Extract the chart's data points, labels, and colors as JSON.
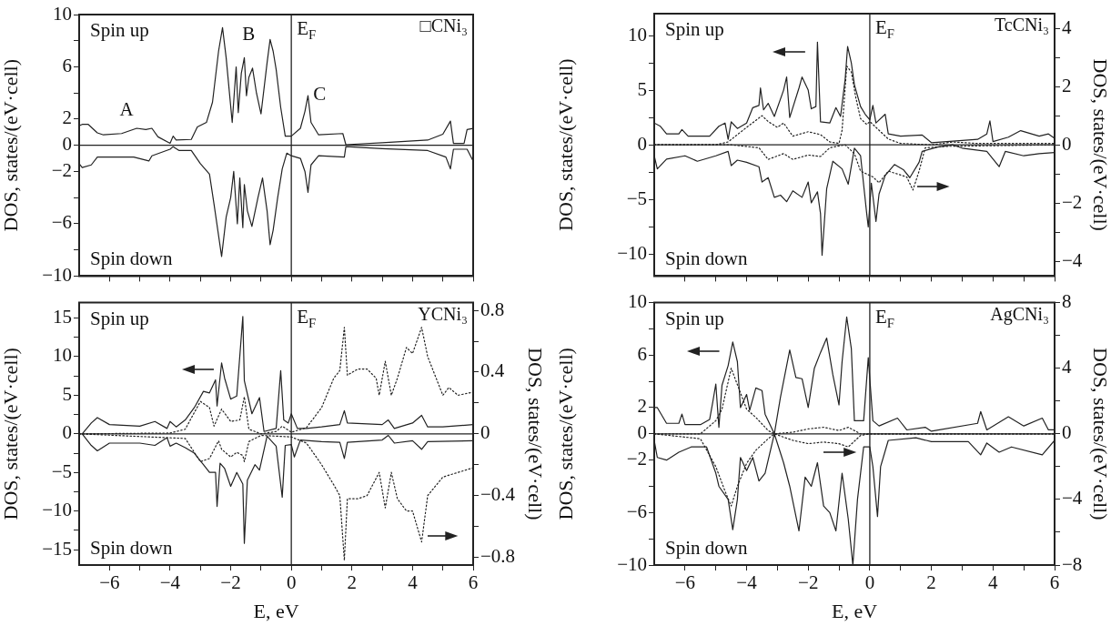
{
  "chart_data": [
    {
      "type": "line",
      "title": "□CNi₃",
      "ylabel": "DOS, states/(eV·cell)",
      "xlim": [
        -7,
        6
      ],
      "xticks": [
        -6,
        {
          "value": -5,
          "label": null
        },
        -4,
        {
          "value": -3,
          "label": null
        },
        -2,
        {
          "value": -1,
          "label": null
        },
        0,
        {
          "value": 1,
          "label": null
        },
        2,
        {
          "value": 3,
          "label": null
        },
        4,
        {
          "value": 5,
          "label": null
        },
        6
      ],
      "ylim": [
        -10,
        10
      ],
      "yticks": [
        -10,
        {
          "value": -8,
          "label": null
        },
        -6,
        {
          "value": -4,
          "label": null
        },
        -2,
        0,
        2,
        {
          "value": 4,
          "label": null
        },
        6,
        {
          "value": 8,
          "label": null
        },
        10
      ],
      "tick_labels": "y",
      "ref_lines": [
        {
          "axis": "x",
          "value": 0,
          "label": "E$_{F}$"
        },
        {
          "axis": "y",
          "value": 0
        }
      ],
      "annotations": [
        "Spin up",
        "Spin down",
        "A",
        "B",
        "C"
      ],
      "series": [
        {
          "color": "#222222",
          "x": [
            -7,
            -6.9,
            -6.7,
            -6.4,
            -6.2,
            -5.6,
            -5.1,
            -4.8,
            -4.6,
            -4.4,
            -4.0,
            -3.9,
            -3.8,
            -3.3,
            -3.1,
            -2.8,
            -2.6,
            -2.4,
            -2.27,
            -2.15,
            -1.95,
            -1.82,
            -1.75,
            -1.65,
            -1.55,
            -1.48,
            -1.4,
            -1.28,
            -1.15,
            -1.0,
            -0.8,
            -0.7,
            -0.6,
            -0.5,
            -0.35,
            -0.2,
            0,
            0.3,
            0.45,
            0.55,
            0.65,
            0.9,
            1.7,
            1.8,
            3.0,
            4.5,
            5.0,
            5.25,
            5.35,
            5.7,
            5.8,
            6.0
          ],
          "values": [
            1.5,
            1.6,
            1.6,
            0.95,
            0.8,
            0.9,
            1.3,
            1.2,
            1.3,
            0.65,
            0.15,
            0.7,
            0.4,
            0.45,
            1.4,
            1.75,
            3.3,
            7.2,
            9.0,
            6.7,
            1.75,
            6.0,
            2.5,
            5.5,
            6.7,
            3.8,
            5.2,
            5.9,
            4.0,
            2.4,
            6.3,
            8.1,
            7.2,
            5.8,
            2.9,
            0.7,
            0.7,
            1.3,
            2.6,
            3.8,
            1.75,
            0.8,
            0.9,
            0.05,
            0.2,
            0.4,
            0.85,
            1.85,
            0.15,
            0.15,
            1.2,
            1.3
          ]
        },
        {
          "color": "#222222",
          "x": [
            -7,
            -6.9,
            -6.6,
            -6.4,
            -5.2,
            -4.7,
            -4.6,
            -4.0,
            -3.9,
            -3.7,
            -3.3,
            -3.0,
            -2.7,
            -2.55,
            -2.3,
            -2.15,
            -2.0,
            -1.9,
            -1.78,
            -1.7,
            -1.6,
            -1.55,
            -1.45,
            -1.3,
            -1.1,
            -0.95,
            -0.8,
            -0.7,
            -0.6,
            -0.45,
            -0.3,
            -0.15,
            0,
            0.3,
            0.45,
            0.55,
            0.65,
            0.9,
            1.75,
            1.8,
            3.0,
            4.5,
            5.1,
            5.25,
            5.35,
            5.8,
            6.0
          ],
          "values": [
            -1.4,
            -1.7,
            -1.5,
            -0.9,
            -0.9,
            -1.2,
            -0.8,
            -0.3,
            -0.1,
            -0.4,
            -0.4,
            -1.4,
            -2.2,
            -4.5,
            -8.5,
            -5.5,
            -4.0,
            -2.0,
            -6.0,
            -2.5,
            -6.3,
            -3.0,
            -5.0,
            -6.2,
            -4.0,
            -2.5,
            -5.0,
            -7.6,
            -6.5,
            -4.0,
            -1.8,
            -0.6,
            -0.8,
            -1.0,
            -2.0,
            -3.6,
            -1.5,
            -0.8,
            -0.9,
            -0.1,
            -0.25,
            -0.4,
            -0.9,
            -1.8,
            -0.3,
            -0.3,
            -1.2
          ]
        }
      ]
    },
    {
      "type": "line",
      "title": "TcCNi₃",
      "ylabel": "DOS, states/(eV·cell)",
      "y2label": "DOS, states/(eV·cell)",
      "xlim": [
        -7,
        6
      ],
      "xticks": [
        -6,
        {
          "value": -5,
          "label": null
        },
        -4,
        {
          "value": -3,
          "label": null
        },
        -2,
        {
          "value": -1,
          "label": null
        },
        0,
        {
          "value": 1,
          "label": null
        },
        2,
        {
          "value": 3,
          "label": null
        },
        4,
        {
          "value": 5,
          "label": null
        },
        6
      ],
      "ylim": [
        -12,
        12
      ],
      "yticks": [
        -10,
        {
          "value": -7.5,
          "label": null
        },
        -5,
        {
          "value": -2.5,
          "label": null
        },
        0,
        {
          "value": 2.5,
          "label": null
        },
        5,
        {
          "value": 7.5,
          "label": null
        },
        10
      ],
      "y2lim": [
        -4.5,
        4.5
      ],
      "y2ticks": [
        -4,
        {
          "value": -3,
          "label": null
        },
        -2,
        {
          "value": -1,
          "label": null
        },
        0,
        {
          "value": 1,
          "label": null
        },
        2,
        {
          "value": 3,
          "label": null
        },
        4
      ],
      "tick_labels": "y",
      "ref_lines": [
        {
          "axis": "x",
          "value": 0,
          "label": "E$_{F}$"
        },
        {
          "axis": "y",
          "value": 0
        }
      ],
      "annotations": [
        "Spin up",
        "Spin down"
      ],
      "series": [
        {
          "color": "#222222",
          "x": [
            -7,
            -6.8,
            -6.6,
            -6.2,
            -6.1,
            -5.9,
            -5.2,
            -4.9,
            -4.7,
            -4.6,
            -4.5,
            -4.3,
            -4.0,
            -3.8,
            -3.6,
            -3.55,
            -3.45,
            -3.3,
            -3.1,
            -2.8,
            -2.7,
            -2.6,
            -2.3,
            -2.2,
            -2.0,
            -1.9,
            -1.75,
            -1.7,
            -1.6,
            -1.3,
            -1.1,
            -0.95,
            -0.8,
            -0.72,
            -0.6,
            -0.5,
            -0.3,
            -0.15,
            0,
            0.1,
            0.2,
            0.5,
            0.6,
            1.0,
            1.7,
            2.0,
            3.0,
            3.5,
            3.8,
            3.9,
            4.0,
            4.5,
            4.9,
            5.5,
            5.8,
            6.0
          ],
          "values": [
            2.0,
            1.7,
            1.0,
            1.0,
            1.4,
            0.8,
            0.8,
            1.7,
            2.0,
            0.5,
            2.1,
            1.5,
            2.0,
            3.4,
            3.6,
            5.2,
            3.2,
            3.8,
            2.6,
            5.0,
            6.2,
            2.5,
            5.2,
            6.2,
            5.0,
            3.3,
            3.5,
            9.4,
            2.1,
            2.0,
            3.4,
            2.6,
            6.0,
            9.0,
            7.5,
            5.5,
            3.5,
            2.8,
            2.3,
            3.6,
            2.0,
            2.8,
            1.0,
            0.8,
            0.9,
            0.2,
            0.4,
            0.5,
            1.0,
            2.2,
            0.3,
            0.7,
            1.3,
            0.8,
            1.0,
            0.6
          ]
        },
        {
          "color": "#222222",
          "x": [
            -7,
            -6.9,
            -6.6,
            -6.0,
            -5.6,
            -5.0,
            -4.6,
            -4.5,
            -4.3,
            -4.0,
            -3.6,
            -3.5,
            -3.3,
            -3.1,
            -2.9,
            -2.7,
            -2.5,
            -2.2,
            -2.0,
            -1.9,
            -1.7,
            -1.6,
            -1.55,
            -1.4,
            -1.2,
            -0.9,
            -0.7,
            -0.5,
            -0.3,
            -0.1,
            -0.05,
            0.05,
            0.2,
            0.3,
            0.5,
            0.8,
            1.1,
            1.3,
            1.6,
            1.7,
            2.2,
            2.7,
            3.0,
            3.8,
            4.2,
            4.4,
            5.0,
            5.5,
            6.0
          ],
          "values": [
            -1.0,
            -2.2,
            -1.3,
            -1.0,
            -1.5,
            -1.0,
            -0.6,
            -1.9,
            -1.4,
            -1.6,
            -2.0,
            -3.4,
            -3.0,
            -4.8,
            -4.6,
            -5.2,
            -4.2,
            -4.8,
            -3.4,
            -5.3,
            -4.3,
            -6.3,
            -10.1,
            -4.0,
            -1.5,
            -2.2,
            -3.6,
            -0.3,
            -1.0,
            -6.3,
            -7.5,
            -3.5,
            -7.0,
            -4.5,
            -2.8,
            -1.8,
            -2.3,
            -3.0,
            -1.6,
            -0.6,
            -0.2,
            0.0,
            -0.3,
            -0.6,
            -2.0,
            -0.6,
            -1.0,
            -0.8,
            -0.7
          ]
        },
        {
          "color": "#222222",
          "line_style": "dotted",
          "axis": "y2",
          "x": [
            -7,
            -5.0,
            -4.6,
            -4.0,
            -3.5,
            -3.3,
            -3.0,
            -2.8,
            -2.5,
            -2.0,
            -1.6,
            -1.3,
            -1.0,
            -0.9,
            -0.75,
            -0.6,
            -0.45,
            -0.3,
            -0.1,
            0,
            0.2,
            0.6,
            1.0,
            2.0,
            2.7,
            3.5,
            6.0
          ],
          "values": [
            0,
            0,
            0.1,
            0.6,
            1.0,
            0.8,
            0.6,
            0.75,
            0.3,
            0.45,
            0.35,
            0.1,
            0.05,
            0.5,
            2.7,
            2.5,
            1.6,
            0.9,
            0.7,
            0.8,
            0.6,
            0.2,
            0.05,
            0,
            0.1,
            0.05,
            0.05
          ]
        },
        {
          "color": "#222222",
          "line_style": "dotted",
          "axis": "y2",
          "x": [
            -7,
            -4.5,
            -3.6,
            -3.3,
            -2.8,
            -2.5,
            -2.0,
            -1.6,
            -1.3,
            -0.8,
            -0.5,
            -0.3,
            -0.1,
            0.1,
            0.3,
            0.6,
            0.9,
            1.2,
            1.4,
            1.6,
            1.8,
            2.5,
            6.0
          ],
          "values": [
            0,
            0,
            -0.1,
            -0.5,
            -0.3,
            -0.5,
            -0.35,
            -0.4,
            -0.1,
            0,
            -0.3,
            -0.9,
            -1.0,
            -1.1,
            -1.3,
            -0.9,
            -1.0,
            -1.1,
            -1.55,
            -0.9,
            -0.1,
            -0.05,
            0
          ]
        }
      ]
    },
    {
      "type": "line",
      "title": "YCNi₃",
      "xlabel": "E, eV",
      "ylabel": "DOS, states/(eV·cell)",
      "y2label": "DOS, states/(eV·cell)",
      "xlim": [
        -7,
        6
      ],
      "xticks": [
        -6,
        {
          "value": -5,
          "label": null
        },
        -4,
        {
          "value": -3,
          "label": null
        },
        -2,
        {
          "value": -1,
          "label": null
        },
        0,
        {
          "value": 1,
          "label": null
        },
        2,
        {
          "value": 3,
          "label": null
        },
        4,
        {
          "value": 5,
          "label": null
        },
        6
      ],
      "ylim": [
        -17,
        17
      ],
      "yticks": [
        -15,
        {
          "value": -12.5,
          "label": null
        },
        -10,
        {
          "value": -7.5,
          "label": null
        },
        -5,
        {
          "value": -2.5,
          "label": null
        },
        0,
        {
          "value": 2.5,
          "label": null
        },
        5,
        {
          "value": 7.5,
          "label": null
        },
        10,
        {
          "value": 12.5,
          "label": null
        },
        15
      ],
      "y2lim": [
        -0.85,
        0.85
      ],
      "y2ticks": [
        -0.8,
        {
          "value": -0.6,
          "label": null
        },
        -0.4,
        {
          "value": -0.2,
          "label": null
        },
        0,
        {
          "value": 0.2,
          "label": null
        },
        0.4,
        {
          "value": 0.6,
          "label": null
        },
        0.8
      ],
      "ref_lines": [
        {
          "axis": "x",
          "value": 0,
          "label": "E$_{F}$"
        },
        {
          "axis": "y",
          "value": 0
        }
      ],
      "annotations": [
        "Spin up",
        "Spin down"
      ],
      "series": [
        {
          "color": "#222222",
          "x": [
            -6.9,
            -6.6,
            -6.4,
            -6.0,
            -5.0,
            -4.5,
            -4.1,
            -4.0,
            -3.8,
            -3.5,
            -3.2,
            -2.9,
            -2.7,
            -2.5,
            -2.45,
            -2.3,
            -2.2,
            -2.0,
            -1.8,
            -1.6,
            -1.55,
            -1.3,
            -1.05,
            -0.9,
            -0.5,
            -0.35,
            -0.25,
            -0.1,
            0,
            0.2,
            0.5,
            1.0,
            1.6,
            1.75,
            1.85,
            3.0,
            3.2,
            3.4,
            4.0,
            4.3,
            4.5,
            5.0,
            6.0
          ],
          "values": [
            0,
            1.4,
            2.1,
            1.2,
            1.0,
            1.6,
            0.7,
            1.6,
            0.9,
            1.8,
            3.4,
            5.5,
            5.3,
            7.0,
            3.6,
            9.2,
            7.2,
            4.5,
            4.9,
            15.2,
            6.9,
            2.6,
            4.7,
            0.3,
            0.7,
            8.2,
            1.8,
            1.4,
            2.6,
            0.7,
            0.7,
            0.9,
            1.2,
            3.0,
            1.4,
            1.2,
            1.8,
            0.7,
            1.4,
            2.4,
            0.9,
            0.9,
            1.2
          ]
        },
        {
          "color": "#222222",
          "x": [
            -6.9,
            -6.6,
            -6.4,
            -6.0,
            -5.0,
            -4.5,
            -4.1,
            -4.0,
            -3.8,
            -3.5,
            -3.2,
            -2.9,
            -2.7,
            -2.5,
            -2.45,
            -2.35,
            -2.2,
            -2.0,
            -1.8,
            -1.6,
            -1.55,
            -1.45,
            -1.2,
            -1.05,
            -0.8,
            -0.5,
            -0.3,
            -0.2,
            0,
            0.1,
            0.3,
            1.0,
            1.6,
            1.75,
            1.85,
            3.0,
            3.2,
            3.4,
            4.0,
            4.3,
            4.5,
            6.0
          ],
          "values": [
            0,
            -1.5,
            -2.2,
            -1.2,
            -1.2,
            -1.5,
            -0.5,
            -1.6,
            -1.2,
            -1.8,
            -2.5,
            -4.0,
            -5.0,
            -5.0,
            -9.4,
            -3.8,
            -4.5,
            -6.8,
            -5.0,
            -6.5,
            -14.2,
            -6.0,
            -4.0,
            -4.7,
            -0.3,
            -1.6,
            -8.2,
            -1.5,
            -1.4,
            -3.0,
            -0.8,
            -1.0,
            -1.1,
            -3.2,
            -1.1,
            -0.8,
            -0.2,
            -1.2,
            -0.9,
            -2.0,
            -1.0,
            -0.9
          ]
        },
        {
          "color": "#222222",
          "line_style": "dotted",
          "axis": "y2",
          "x": [
            -7,
            -4.0,
            -3.5,
            -3.0,
            -2.7,
            -2.55,
            -2.3,
            -2.0,
            -1.7,
            -1.55,
            -1.4,
            -1.0,
            -0.5,
            -0.3,
            0,
            0.5,
            1.0,
            1.4,
            1.6,
            1.75,
            1.85,
            2.2,
            2.5,
            2.8,
            2.9,
            3.1,
            3.3,
            3.5,
            3.8,
            4.0,
            4.3,
            4.5,
            5.0,
            5.2,
            5.5,
            6.0
          ],
          "values": [
            0,
            0.005,
            0.03,
            0.21,
            0.17,
            0.05,
            0.16,
            0.08,
            0.09,
            0.24,
            0.03,
            0,
            0.015,
            0.05,
            0.01,
            0.04,
            0.17,
            0.36,
            0.41,
            0.69,
            0.38,
            0.42,
            0.42,
            0.36,
            0.25,
            0.47,
            0.25,
            0.36,
            0.56,
            0.52,
            0.69,
            0.5,
            0.25,
            0.3,
            0.25,
            0.27
          ]
        },
        {
          "color": "#222222",
          "line_style": "dotted",
          "axis": "y2",
          "x": [
            -7,
            -3.5,
            -3.0,
            -2.7,
            -2.4,
            -2.3,
            -2.0,
            -1.8,
            -1.6,
            -1.55,
            -1.4,
            -1.0,
            0,
            0.5,
            1.0,
            1.4,
            1.6,
            1.75,
            1.85,
            2.2,
            2.5,
            2.9,
            3.1,
            3.3,
            3.5,
            3.8,
            4.0,
            4.3,
            4.5,
            5.0,
            5.5,
            6.0
          ],
          "values": [
            0,
            -0.03,
            -0.18,
            -0.16,
            -0.045,
            -0.1,
            -0.15,
            -0.12,
            -0.14,
            -0.18,
            -0.05,
            -0.01,
            -0.02,
            -0.06,
            -0.2,
            -0.33,
            -0.4,
            -0.82,
            -0.42,
            -0.42,
            -0.4,
            -0.25,
            -0.48,
            -0.25,
            -0.42,
            -0.5,
            -0.5,
            -0.7,
            -0.4,
            -0.28,
            -0.25,
            -0.22
          ]
        }
      ]
    },
    {
      "type": "line",
      "title": "AgCNi₃",
      "xlabel": "E, eV",
      "ylabel": "DOS, states/(eV·cell)",
      "y2label": "DOS, states/(eV·cell)",
      "xlim": [
        -7,
        6
      ],
      "xticks": [
        -6,
        {
          "value": -5,
          "label": null
        },
        -4,
        {
          "value": -3,
          "label": null
        },
        -2,
        {
          "value": -1,
          "label": null
        },
        0,
        {
          "value": 1,
          "label": null
        },
        2,
        {
          "value": 3,
          "label": null
        },
        4,
        {
          "value": 5,
          "label": null
        },
        6
      ],
      "ylim": [
        -10,
        10
      ],
      "yticks": [
        -10,
        {
          "value": -8,
          "label": null
        },
        -6,
        {
          "value": -4,
          "label": null
        },
        -2,
        0,
        2,
        {
          "value": 4,
          "label": null
        },
        6,
        {
          "value": 8,
          "label": null
        },
        10
      ],
      "y2lim": [
        -8,
        8
      ],
      "y2ticks": [
        -8,
        {
          "value": -6,
          "label": null
        },
        -4,
        {
          "value": -2,
          "label": null
        },
        0,
        {
          "value": 2,
          "label": null
        },
        4,
        {
          "value": 6,
          "label": null
        },
        8
      ],
      "ref_lines": [
        {
          "axis": "x",
          "value": 0,
          "label": "E$_{F}$"
        },
        {
          "axis": "y",
          "value": 0
        }
      ],
      "annotations": [
        "Spin up",
        "Spin down"
      ],
      "series": [
        {
          "color": "#222222",
          "x": [
            -7,
            -6.9,
            -6.6,
            -6.2,
            -6.1,
            -6.0,
            -5.5,
            -5.2,
            -5.1,
            -5.0,
            -4.9,
            -4.8,
            -4.6,
            -4.45,
            -4.3,
            -4.2,
            -4.0,
            -3.9,
            -3.7,
            -3.5,
            -3.4,
            -3.1,
            -2.9,
            -2.6,
            -2.4,
            -2.2,
            -2.0,
            -1.8,
            -1.6,
            -1.4,
            -1.2,
            -1.0,
            -0.9,
            -0.75,
            -0.6,
            -0.5,
            -0.2,
            -0.05,
            0.1,
            0.3,
            0.9,
            1.2,
            1.8,
            2.0,
            3.5,
            3.6,
            3.8,
            4.5,
            5.0,
            5.6,
            5.8,
            6.0
          ],
          "values": [
            2.0,
            2.0,
            0.8,
            0.8,
            1.5,
            0.7,
            0.7,
            1.1,
            2.4,
            3.8,
            0.5,
            3.7,
            5.2,
            7.0,
            5.5,
            2.0,
            3.0,
            1.8,
            3.5,
            3.3,
            1.5,
            0.0,
            2.8,
            6.4,
            4.3,
            4.2,
            2.0,
            5.0,
            6.2,
            7.3,
            4.5,
            2.2,
            5.5,
            8.9,
            6.5,
            1.0,
            1.0,
            5.8,
            1.0,
            0.6,
            1.2,
            0.3,
            0.5,
            0.2,
            0.8,
            1.7,
            0.3,
            1.3,
            0.6,
            1.2,
            0.3,
            0.3
          ]
        },
        {
          "color": "#222222",
          "x": [
            -7,
            -6.9,
            -6.6,
            -6.2,
            -5.8,
            -5.3,
            -5.0,
            -4.9,
            -4.6,
            -4.45,
            -4.3,
            -4.2,
            -4.0,
            -3.8,
            -3.6,
            -3.4,
            -3.1,
            -2.8,
            -2.6,
            -2.3,
            -2.1,
            -1.9,
            -1.7,
            -1.5,
            -1.3,
            -1.1,
            -0.9,
            -0.7,
            -0.55,
            -0.4,
            -0.2,
            0,
            0.1,
            0.25,
            0.35,
            0.6,
            1.5,
            2.0,
            3.2,
            3.6,
            3.8,
            4.2,
            4.6,
            5.6,
            6.0
          ],
          "values": [
            -0.5,
            -1.8,
            -2.0,
            -1.4,
            -1.0,
            -1.0,
            -3.0,
            -4.0,
            -5.0,
            -7.3,
            -5.0,
            -1.8,
            -2.8,
            -1.8,
            -3.6,
            -3.0,
            0.0,
            -2.2,
            -4.0,
            -7.4,
            -3.3,
            -4.0,
            -2.2,
            -5.5,
            -6.0,
            -7.4,
            -3.0,
            -6.5,
            -10.0,
            -5.0,
            -1.0,
            -1.0,
            -2.5,
            -6.3,
            -2.5,
            -0.5,
            -0.3,
            -0.6,
            -0.6,
            -1.6,
            -0.7,
            -1.4,
            -1.0,
            -1.6,
            -0.5
          ]
        },
        {
          "color": "#222222",
          "line_style": "dotted",
          "axis": "y2",
          "x": [
            -7,
            -5.5,
            -5.0,
            -4.8,
            -4.5,
            -4.3,
            -4.0,
            -3.7,
            -3.3,
            -3.1,
            -2.5,
            -2.0,
            -1.5,
            -1.0,
            -0.7,
            -0.3,
            6.0
          ],
          "values": [
            0,
            0,
            0.8,
            1.5,
            4.0,
            3.0,
            1.5,
            1.0,
            0.2,
            0,
            0.1,
            0.3,
            0.4,
            0.2,
            0.4,
            0,
            0
          ]
        },
        {
          "color": "#222222",
          "line_style": "dotted",
          "axis": "y2",
          "x": [
            -7,
            -5.5,
            -5.0,
            -4.7,
            -4.5,
            -4.3,
            -4.0,
            -3.7,
            -3.3,
            -3.1,
            -2.5,
            -2.0,
            -1.5,
            -1.0,
            -0.7,
            -0.3,
            0,
            6.0
          ],
          "values": [
            0,
            -0.3,
            -2.0,
            -3.5,
            -4.4,
            -3.2,
            -1.8,
            -1.0,
            -0.3,
            0,
            -0.4,
            -0.6,
            -0.5,
            -0.6,
            -0.8,
            -0.1,
            0,
            0
          ]
        }
      ]
    }
  ]
}
